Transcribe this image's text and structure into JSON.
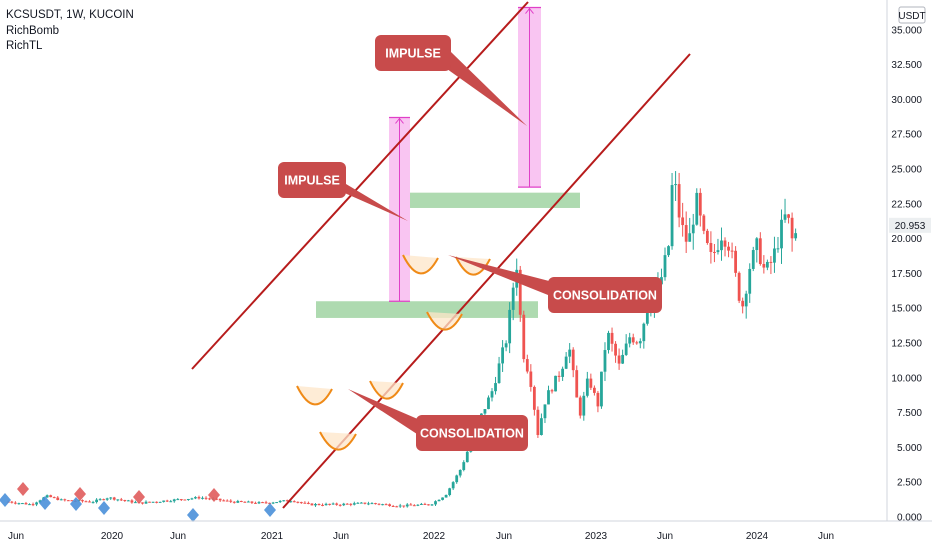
{
  "legend": {
    "symbol_line": "KCSUSDT, 1W, KUCOIN",
    "indicators": [
      "RichBomb",
      "RichTL"
    ]
  },
  "currency_badge": "USDT",
  "current_price": "20.953",
  "colors": {
    "up": "#26a69a",
    "down": "#ef5350",
    "channel": "#b71c1c",
    "impulse_fill": "#f8bbf0",
    "impulse_border": "#e040c8",
    "zone_fill": "#a5d6a7",
    "callout": "#c84b4b",
    "cup": "#ef8a17",
    "price_tag": "#eceff1"
  },
  "annotations": [
    {
      "text": "IMPULSE"
    },
    {
      "text": "IMPULSE"
    },
    {
      "text": "CONSOLIDATION"
    },
    {
      "text": "CONSOLIDATION"
    }
  ],
  "chart_data": {
    "type": "candlestick",
    "title": "KCSUSDT, 1W, KUCOIN",
    "y_ticks": [
      "0.000",
      "2.500",
      "5.000",
      "7.500",
      "10.000",
      "12.500",
      "15.000",
      "17.500",
      "20.000",
      "22.500",
      "25.000",
      "27.500",
      "30.000",
      "32.500",
      "35.000"
    ],
    "x_ticks": [
      "Jun",
      "2020",
      "Jun",
      "2021",
      "Jun",
      "2022",
      "Jun",
      "2023",
      "Jun",
      "2024",
      "Jun"
    ],
    "ylim": [
      0,
      36.5
    ],
    "last_price": 20.953,
    "price_segments": [
      {
        "from": "2019-05",
        "to": "2021-01",
        "close_approx": [
          0.8,
          1.5
        ]
      },
      {
        "from": "2021-01",
        "to": "2021-05",
        "close_approx": [
          1.0,
          18.5
        ]
      },
      {
        "from": "2021-05",
        "to": "2021-10",
        "close_approx": [
          5.5,
          15.0
        ]
      },
      {
        "from": "2021-10",
        "to": "2021-12",
        "close_approx": [
          15.5,
          28.5
        ]
      },
      {
        "from": "2021-12",
        "to": "2022-04",
        "close_approx": [
          14.0,
          22.0
        ]
      }
    ],
    "zones": [
      {
        "label": "support",
        "low": 14.3,
        "high": 15.5
      },
      {
        "label": "resistance",
        "low": 22.2,
        "high": 23.3
      }
    ],
    "impulse_boxes": [
      {
        "low": 15.5,
        "high": 28.7
      },
      {
        "low": 23.7,
        "high": 36.6
      }
    ],
    "grid": false
  }
}
